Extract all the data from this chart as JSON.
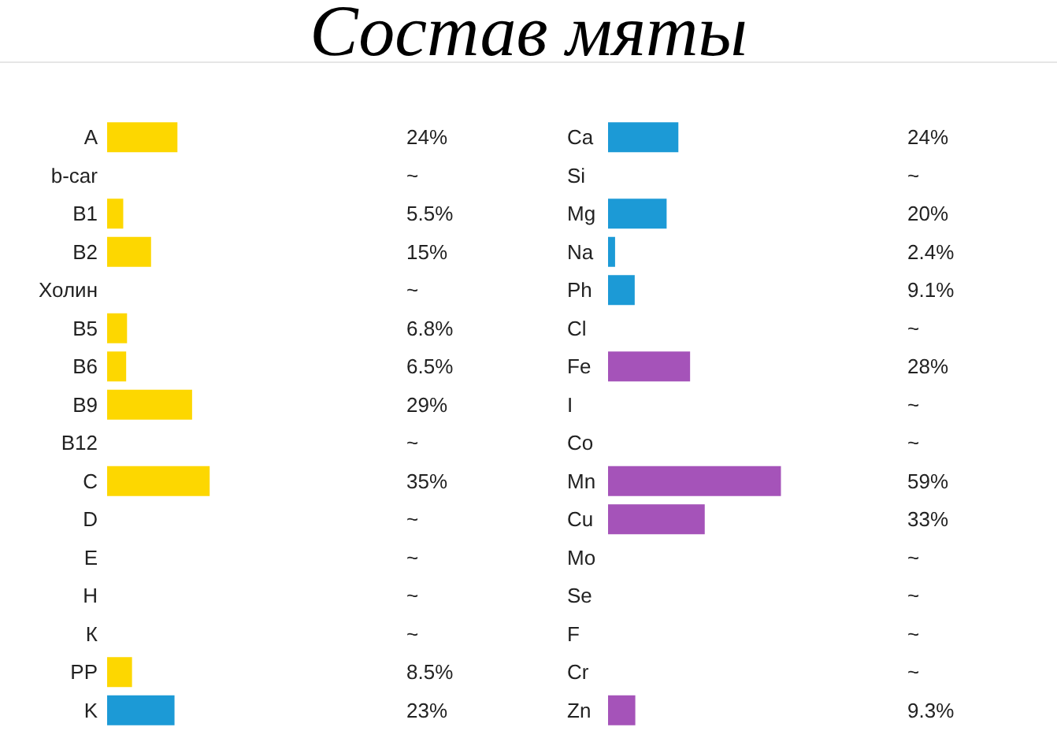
{
  "chart_data": [
    {
      "type": "other",
      "title": "Состав мяты"
    },
    {
      "type": "bar",
      "orientation": "horizontal",
      "categories": [
        "A",
        "b-car",
        "B1",
        "B2",
        "Холин",
        "B5",
        "B6",
        "B9",
        "B12",
        "C",
        "D",
        "E",
        "H",
        "К",
        "PP",
        "K"
      ],
      "values": [
        24,
        null,
        5.5,
        15,
        null,
        6.8,
        6.5,
        29,
        null,
        35,
        null,
        null,
        null,
        null,
        8.5,
        23
      ],
      "colors": [
        "#fdd700",
        null,
        "#fdd700",
        "#fdd700",
        null,
        "#fdd700",
        "#fdd700",
        "#fdd700",
        null,
        "#fdd700",
        null,
        null,
        null,
        null,
        "#fdd700",
        "#1c9ad6"
      ],
      "value_labels": [
        "24%",
        "~",
        "5.5%",
        "15%",
        "~",
        "6.8%",
        "6.5%",
        "29%",
        "~",
        "35%",
        "~",
        "~",
        "~",
        "~",
        "8.5%",
        "23%"
      ],
      "tick_labels": "y",
      "grid": false
    },
    {
      "type": "bar",
      "orientation": "horizontal",
      "categories": [
        "Ca",
        "Si",
        "Mg",
        "Na",
        "Ph",
        "Cl",
        "Fe",
        "I",
        "Co",
        "Mn",
        "Cu",
        "Mo",
        "Se",
        "F",
        "Cr",
        "Zn"
      ],
      "values": [
        24,
        null,
        20,
        2.4,
        9.1,
        null,
        28,
        null,
        null,
        59,
        33,
        null,
        null,
        null,
        null,
        9.3
      ],
      "colors": [
        "#1c9ad6",
        null,
        "#1c9ad6",
        "#1c9ad6",
        "#1c9ad6",
        null,
        "#a553b9",
        null,
        null,
        "#a553b9",
        "#a553b9",
        null,
        null,
        null,
        null,
        "#a553b9"
      ],
      "value_labels": [
        "24%",
        "~",
        "20%",
        "2.4%",
        "9.1%",
        "~",
        "28%",
        "~",
        "~",
        "59%",
        "33%",
        "~",
        "~",
        "~",
        "~",
        "9.3%"
      ],
      "tick_labels": "y",
      "grid": false
    }
  ]
}
